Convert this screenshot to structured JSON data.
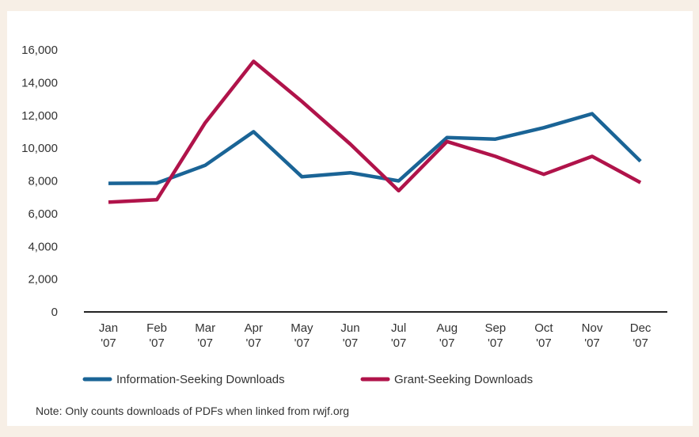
{
  "chart_data": {
    "type": "line",
    "categories": [
      "Jan '07",
      "Feb '07",
      "Mar '07",
      "Apr '07",
      "May '07",
      "Jun '07",
      "Jul '07",
      "Aug '07",
      "Sep '07",
      "Oct '07",
      "Nov '07",
      "Dec '07"
    ],
    "category_lines": [
      [
        "Jan",
        "'07"
      ],
      [
        "Feb",
        "'07"
      ],
      [
        "Mar",
        "'07"
      ],
      [
        "Apr",
        "'07"
      ],
      [
        "May",
        "'07"
      ],
      [
        "Jun",
        "'07"
      ],
      [
        "Jul",
        "'07"
      ],
      [
        "Aug",
        "'07"
      ],
      [
        "Sep",
        "'07"
      ],
      [
        "Oct",
        "'07"
      ],
      [
        "Nov",
        "'07"
      ],
      [
        "Dec",
        "'07"
      ]
    ],
    "series": [
      {
        "name": "Information-Seeking Downloads",
        "color": "#1a6496",
        "values": [
          7850,
          7870,
          8950,
          11000,
          8250,
          8500,
          8000,
          10650,
          10550,
          11250,
          12100,
          9200
        ]
      },
      {
        "name": "Grant-Seeking Downloads",
        "color": "#b0134a",
        "values": [
          6700,
          6850,
          11550,
          15300,
          12850,
          10250,
          7400,
          10400,
          9500,
          8400,
          9500,
          7900
        ]
      }
    ],
    "ylim": [
      0,
      16000
    ],
    "yticks": [
      0,
      2000,
      4000,
      6000,
      8000,
      10000,
      12000,
      14000,
      16000
    ],
    "ytick_labels": [
      "0",
      "2,000",
      "4,000",
      "6,000",
      "8,000",
      "10,000",
      "12,000",
      "14,000",
      "16,000"
    ],
    "grid": false,
    "legend_position": "bottom",
    "note": "Note: Only counts downloads of PDFs when linked from rwjf.org"
  }
}
